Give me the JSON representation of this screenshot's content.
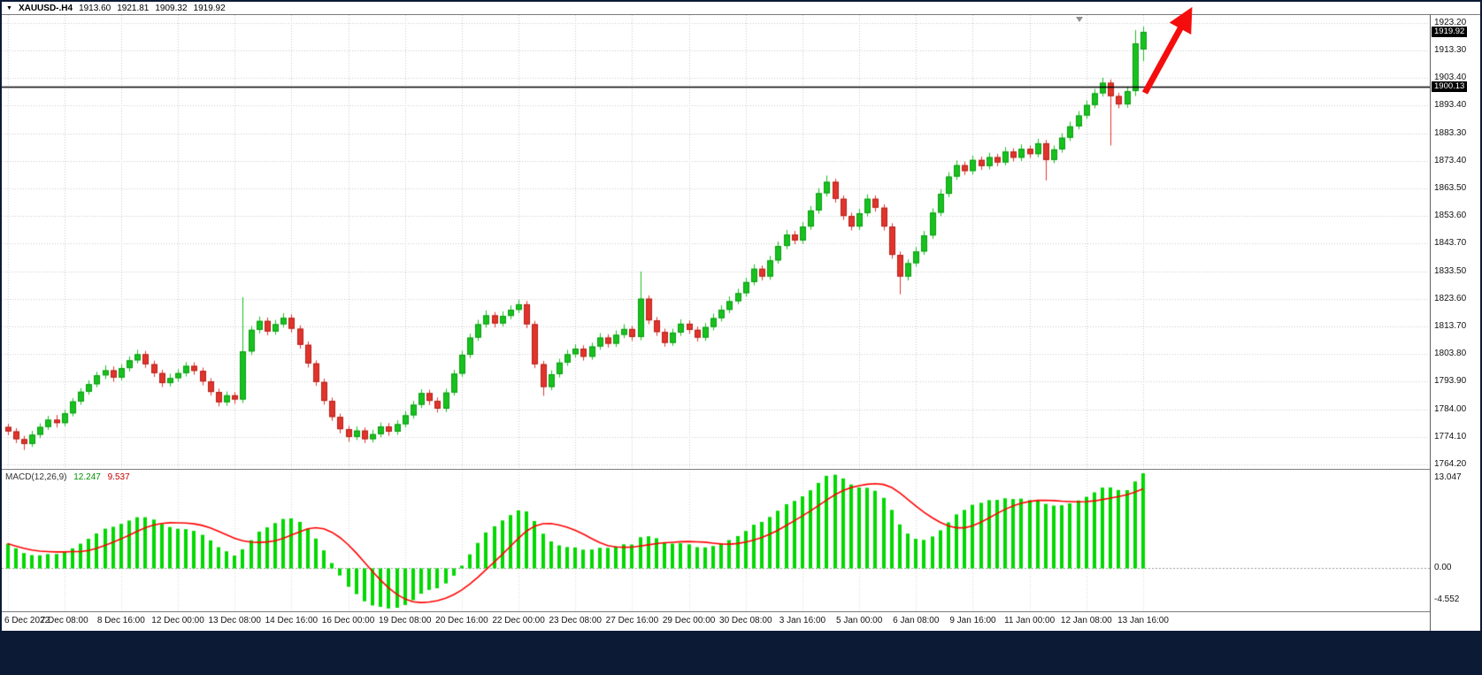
{
  "header": {
    "dropdown_icon": "▼",
    "symbol_period": "XAUUSD-.H4",
    "open": "1913.60",
    "high": "1921.81",
    "low": "1909.32",
    "close": "1919.92"
  },
  "price_axis": {
    "labels": [
      "1923.20",
      "1913.30",
      "1903.40",
      "1893.40",
      "1883.30",
      "1873.40",
      "1863.50",
      "1853.60",
      "1843.70",
      "1833.50",
      "1823.60",
      "1813.70",
      "1803.80",
      "1793.90",
      "1784.00",
      "1774.10",
      "1764.20"
    ],
    "badges": [
      {
        "name": "current-price-badge",
        "text": "1919.92",
        "value": 1919.92
      },
      {
        "name": "line-price-badge",
        "text": "1900.13",
        "value": 1900.13
      }
    ]
  },
  "macd_panel": {
    "label": "MACD(12,26,9)",
    "macd_value": "12.247",
    "signal_value": "9.537",
    "axis": [
      {
        "text": "13.047",
        "value": 13.047
      },
      {
        "text": "0.00",
        "value": 0
      },
      {
        "text": "-4.552",
        "value": -4.552
      }
    ]
  },
  "colors": {
    "bull": "#17c21e",
    "bull_border": "#0c9a13",
    "bear": "#e2342c",
    "bear_border": "#b22018",
    "grid": "#c9c9c9",
    "macd_hist": "#00d800",
    "macd_signal": "#ff0000",
    "price_line": "#000000",
    "arrow": "#f50d0d",
    "frame": "#0c1a36",
    "badge_bg": "#000000",
    "badge_fg": "#ffffff"
  },
  "chart_data": {
    "type": "candlestick",
    "symbol": "XAUUSD-",
    "timeframe": "H4",
    "current_bar": {
      "open": 1913.6,
      "high": 1921.81,
      "low": 1909.32,
      "close": 1919.92
    },
    "ylim": [
      1764.2,
      1923.2
    ],
    "horizontal_line": 1900.13,
    "tick_step": 7,
    "x_labels": [
      "6 Dec 2022",
      "7 Dec 08:00",
      "8 Dec 16:00",
      "12 Dec 00:00",
      "13 Dec 08:00",
      "14 Dec 16:00",
      "16 Dec 00:00",
      "19 Dec 08:00",
      "20 Dec 16:00",
      "22 Dec 00:00",
      "23 Dec 08:00",
      "27 Dec 16:00",
      "29 Dec 00:00",
      "30 Dec 08:00",
      "3 Jan 16:00",
      "5 Jan 00:00",
      "6 Jan 08:00",
      "9 Jan 16:00",
      "11 Jan 00:00",
      "12 Jan 08:00",
      "13 Jan 16:00"
    ],
    "ohlc_format": [
      "open",
      "high",
      "low",
      "close"
    ],
    "candles": [
      [
        1777.6,
        1778.8,
        1774.6,
        1776.0
      ],
      [
        1776.0,
        1777.2,
        1771.8,
        1773.2
      ],
      [
        1773.2,
        1774.4,
        1769.3,
        1771.5
      ],
      [
        1771.5,
        1776.2,
        1770.4,
        1774.8
      ],
      [
        1774.8,
        1778.9,
        1773.6,
        1777.6
      ],
      [
        1777.6,
        1781.6,
        1776.5,
        1780.2
      ],
      [
        1780.2,
        1781.9,
        1777.4,
        1779.0
      ],
      [
        1779.0,
        1783.8,
        1777.9,
        1782.5
      ],
      [
        1782.5,
        1788.0,
        1781.4,
        1786.8
      ],
      [
        1786.8,
        1791.6,
        1785.6,
        1790.3
      ],
      [
        1790.3,
        1794.4,
        1789.2,
        1793.0
      ],
      [
        1793.0,
        1797.5,
        1791.9,
        1796.2
      ],
      [
        1796.2,
        1799.8,
        1794.9,
        1798.0
      ],
      [
        1798.0,
        1799.4,
        1793.8,
        1795.4
      ],
      [
        1795.4,
        1800.2,
        1794.3,
        1798.8
      ],
      [
        1798.8,
        1803.0,
        1797.6,
        1801.6
      ],
      [
        1801.6,
        1805.4,
        1800.5,
        1803.8
      ],
      [
        1803.8,
        1805.0,
        1798.9,
        1800.2
      ],
      [
        1800.2,
        1801.5,
        1795.6,
        1797.0
      ],
      [
        1797.0,
        1798.2,
        1792.0,
        1793.4
      ],
      [
        1793.4,
        1796.8,
        1792.2,
        1795.2
      ],
      [
        1795.2,
        1798.4,
        1794.0,
        1797.0
      ],
      [
        1797.0,
        1801.0,
        1795.8,
        1799.6
      ],
      [
        1799.6,
        1800.9,
        1796.4,
        1797.8
      ],
      [
        1797.8,
        1799.0,
        1792.6,
        1794.0
      ],
      [
        1794.0,
        1795.2,
        1788.9,
        1790.2
      ],
      [
        1790.2,
        1791.4,
        1785.0,
        1786.5
      ],
      [
        1786.5,
        1790.4,
        1785.2,
        1789.0
      ],
      [
        1789.0,
        1790.2,
        1785.9,
        1787.5
      ],
      [
        1787.5,
        1824.4,
        1786.2,
        1804.8
      ],
      [
        1804.8,
        1814.0,
        1803.5,
        1812.6
      ],
      [
        1812.6,
        1817.4,
        1811.3,
        1815.8
      ],
      [
        1815.8,
        1817.0,
        1810.6,
        1812.0
      ],
      [
        1812.0,
        1816.2,
        1810.8,
        1814.6
      ],
      [
        1814.6,
        1818.6,
        1813.4,
        1816.9
      ],
      [
        1816.9,
        1818.2,
        1811.6,
        1813.0
      ],
      [
        1813.0,
        1814.2,
        1805.8,
        1807.2
      ],
      [
        1807.2,
        1808.4,
        1799.0,
        1800.5
      ],
      [
        1800.5,
        1801.6,
        1792.4,
        1793.8
      ],
      [
        1793.8,
        1795.0,
        1785.6,
        1787.0
      ],
      [
        1787.0,
        1788.2,
        1779.8,
        1781.2
      ],
      [
        1781.2,
        1782.4,
        1775.3,
        1776.8
      ],
      [
        1776.8,
        1778.0,
        1772.3,
        1774.0
      ],
      [
        1774.0,
        1777.8,
        1772.9,
        1776.3
      ],
      [
        1776.3,
        1777.4,
        1771.8,
        1773.2
      ],
      [
        1773.2,
        1776.6,
        1772.0,
        1775.0
      ],
      [
        1775.0,
        1779.2,
        1773.9,
        1777.8
      ],
      [
        1777.8,
        1779.0,
        1774.4,
        1775.9
      ],
      [
        1775.9,
        1780.0,
        1774.8,
        1778.6
      ],
      [
        1778.6,
        1783.2,
        1777.4,
        1781.8
      ],
      [
        1781.8,
        1787.0,
        1780.6,
        1785.6
      ],
      [
        1785.6,
        1791.2,
        1784.4,
        1789.8
      ],
      [
        1789.8,
        1791.0,
        1785.5,
        1787.0
      ],
      [
        1787.0,
        1788.2,
        1782.8,
        1784.2
      ],
      [
        1784.2,
        1791.4,
        1783.0,
        1790.0
      ],
      [
        1790.0,
        1798.2,
        1788.9,
        1796.8
      ],
      [
        1796.8,
        1805.0,
        1795.6,
        1803.6
      ],
      [
        1803.6,
        1811.2,
        1802.4,
        1809.8
      ],
      [
        1809.8,
        1816.2,
        1808.6,
        1814.6
      ],
      [
        1814.6,
        1819.6,
        1813.4,
        1817.8
      ],
      [
        1817.8,
        1819.0,
        1813.5,
        1814.9
      ],
      [
        1814.9,
        1819.2,
        1813.8,
        1817.6
      ],
      [
        1817.6,
        1821.4,
        1816.4,
        1819.8
      ],
      [
        1819.8,
        1823.4,
        1818.6,
        1821.8
      ],
      [
        1821.8,
        1823.0,
        1813.2,
        1814.6
      ],
      [
        1814.6,
        1815.8,
        1798.8,
        1800.2
      ],
      [
        1800.2,
        1801.4,
        1788.8,
        1792.0
      ],
      [
        1792.0,
        1798.0,
        1790.8,
        1796.6
      ],
      [
        1796.6,
        1802.2,
        1795.4,
        1800.8
      ],
      [
        1800.8,
        1805.4,
        1799.6,
        1803.8
      ],
      [
        1803.8,
        1807.4,
        1802.6,
        1805.8
      ],
      [
        1805.8,
        1807.0,
        1801.5,
        1802.9
      ],
      [
        1802.9,
        1808.0,
        1801.8,
        1806.6
      ],
      [
        1806.6,
        1811.4,
        1805.4,
        1809.8
      ],
      [
        1809.8,
        1811.0,
        1806.2,
        1807.6
      ],
      [
        1807.6,
        1812.4,
        1806.4,
        1810.8
      ],
      [
        1810.8,
        1814.6,
        1809.6,
        1812.9
      ],
      [
        1812.9,
        1814.0,
        1808.6,
        1810.0
      ],
      [
        1810.0,
        1833.6,
        1808.8,
        1823.8
      ],
      [
        1823.8,
        1825.0,
        1814.6,
        1816.0
      ],
      [
        1816.0,
        1817.2,
        1810.4,
        1811.8
      ],
      [
        1811.8,
        1813.0,
        1806.5,
        1807.9
      ],
      [
        1807.9,
        1813.0,
        1806.8,
        1811.6
      ],
      [
        1811.6,
        1816.4,
        1810.4,
        1814.8
      ],
      [
        1814.8,
        1816.0,
        1811.2,
        1812.6
      ],
      [
        1812.6,
        1813.8,
        1808.4,
        1809.8
      ],
      [
        1809.8,
        1815.0,
        1808.6,
        1813.6
      ],
      [
        1813.6,
        1818.4,
        1812.4,
        1816.8
      ],
      [
        1816.8,
        1821.4,
        1815.6,
        1819.8
      ],
      [
        1819.8,
        1824.6,
        1818.6,
        1822.9
      ],
      [
        1822.9,
        1827.4,
        1821.8,
        1825.8
      ],
      [
        1825.8,
        1831.4,
        1824.6,
        1829.8
      ],
      [
        1829.8,
        1836.2,
        1828.6,
        1834.6
      ],
      [
        1834.6,
        1835.8,
        1830.4,
        1831.8
      ],
      [
        1831.8,
        1839.2,
        1830.6,
        1837.6
      ],
      [
        1837.6,
        1844.4,
        1836.4,
        1842.8
      ],
      [
        1842.8,
        1848.6,
        1841.6,
        1846.9
      ],
      [
        1846.9,
        1848.2,
        1843.4,
        1844.8
      ],
      [
        1844.8,
        1851.4,
        1843.6,
        1849.8
      ],
      [
        1849.8,
        1857.2,
        1848.6,
        1855.6
      ],
      [
        1855.6,
        1863.6,
        1854.4,
        1861.8
      ],
      [
        1861.8,
        1868.2,
        1860.6,
        1865.9
      ],
      [
        1865.9,
        1867.0,
        1858.4,
        1859.8
      ],
      [
        1859.8,
        1861.0,
        1852.2,
        1853.6
      ],
      [
        1853.6,
        1854.8,
        1848.4,
        1849.8
      ],
      [
        1849.8,
        1856.2,
        1848.6,
        1854.6
      ],
      [
        1854.6,
        1861.4,
        1853.4,
        1859.8
      ],
      [
        1859.8,
        1861.0,
        1855.2,
        1856.6
      ],
      [
        1856.6,
        1857.8,
        1848.4,
        1849.8
      ],
      [
        1849.8,
        1851.0,
        1838.2,
        1839.6
      ],
      [
        1839.6,
        1840.8,
        1825.4,
        1831.8
      ],
      [
        1831.8,
        1838.0,
        1830.4,
        1836.6
      ],
      [
        1836.6,
        1842.4,
        1835.4,
        1840.8
      ],
      [
        1840.8,
        1848.2,
        1839.6,
        1846.6
      ],
      [
        1846.6,
        1856.4,
        1845.4,
        1854.8
      ],
      [
        1854.8,
        1863.2,
        1853.6,
        1861.6
      ],
      [
        1861.6,
        1869.4,
        1860.4,
        1867.8
      ],
      [
        1867.8,
        1873.6,
        1866.6,
        1871.9
      ],
      [
        1871.9,
        1873.2,
        1868.4,
        1869.8
      ],
      [
        1869.8,
        1875.4,
        1868.6,
        1873.8
      ],
      [
        1873.8,
        1875.0,
        1870.2,
        1871.6
      ],
      [
        1871.6,
        1876.4,
        1870.4,
        1874.8
      ],
      [
        1874.8,
        1876.0,
        1871.5,
        1872.9
      ],
      [
        1872.9,
        1878.4,
        1871.8,
        1876.8
      ],
      [
        1876.8,
        1878.0,
        1873.2,
        1874.6
      ],
      [
        1874.6,
        1879.4,
        1873.4,
        1877.8
      ],
      [
        1877.8,
        1879.0,
        1874.5,
        1875.9
      ],
      [
        1875.9,
        1881.4,
        1874.8,
        1879.8
      ],
      [
        1879.8,
        1881.0,
        1866.4,
        1873.8
      ],
      [
        1873.8,
        1879.0,
        1872.6,
        1877.6
      ],
      [
        1877.6,
        1883.4,
        1876.4,
        1881.8
      ],
      [
        1881.8,
        1887.6,
        1880.6,
        1885.9
      ],
      [
        1885.9,
        1891.4,
        1884.8,
        1889.8
      ],
      [
        1889.8,
        1895.2,
        1888.6,
        1893.6
      ],
      [
        1893.6,
        1899.4,
        1892.4,
        1897.8
      ],
      [
        1897.8,
        1903.4,
        1896.6,
        1901.6
      ],
      [
        1901.6,
        1902.8,
        1879.0,
        1896.8
      ],
      [
        1896.8,
        1898.0,
        1892.4,
        1893.8
      ],
      [
        1893.8,
        1900.2,
        1892.6,
        1898.6
      ],
      [
        1898.6,
        1920.6,
        1896.8,
        1915.8
      ],
      [
        1913.6,
        1921.81,
        1909.32,
        1919.92
      ]
    ],
    "annotations": [
      {
        "type": "arrow",
        "direction": "up-right",
        "color": "#f50d0d"
      }
    ],
    "indicator": {
      "name": "MACD",
      "fast": 12,
      "slow": 26,
      "signal": 9,
      "current_macd": 12.247,
      "current_signal": 9.537,
      "scale_max": 13.047,
      "scale_min": -4.552
    }
  }
}
